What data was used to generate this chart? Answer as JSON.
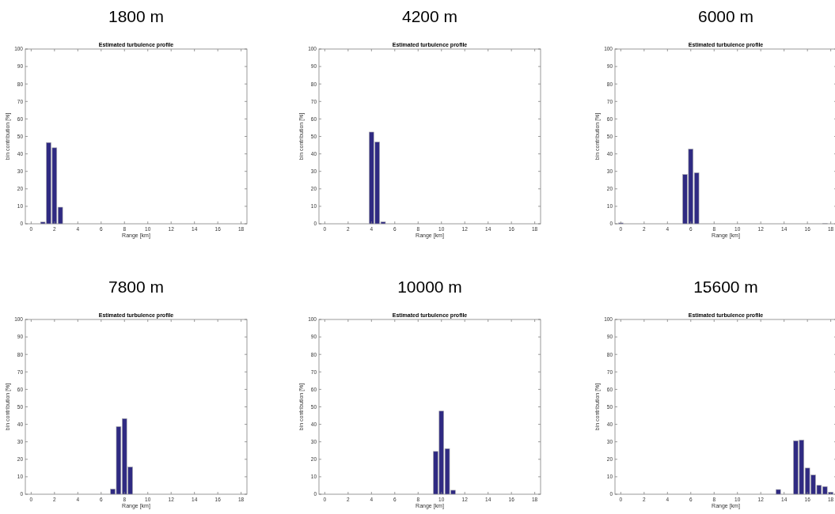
{
  "chart_data": [
    {
      "type": "bar",
      "title": "1800 m",
      "subtitle": "Estimated turbulence profile",
      "xlabel": "Range [km]",
      "ylabel": "bin contribution [%]",
      "x": [
        1,
        1.5,
        2,
        2.5
      ],
      "values": [
        1,
        46.5,
        43.5,
        9.5
      ],
      "color": "#2f2a82",
      "xlim": [
        -0.5,
        18.5
      ],
      "xticks": [
        0,
        2,
        4,
        6,
        8,
        10,
        12,
        14,
        16,
        18
      ],
      "ylim": [
        0,
        100
      ],
      "yticks": [
        0,
        10,
        20,
        30,
        40,
        50,
        60,
        70,
        80,
        90,
        100
      ],
      "grid": false
    },
    {
      "type": "bar",
      "title": "4200 m",
      "subtitle": "Estimated turbulence profile",
      "xlabel": "Range [km]",
      "ylabel": "bin contribution [%]",
      "x": [
        4,
        4.5,
        5
      ],
      "values": [
        52.5,
        46.8,
        1.1
      ],
      "color": "#2f2a82",
      "xlim": [
        -0.5,
        18.5
      ],
      "xticks": [
        0,
        2,
        4,
        6,
        8,
        10,
        12,
        14,
        16,
        18
      ],
      "ylim": [
        0,
        100
      ],
      "yticks": [
        0,
        10,
        20,
        30,
        40,
        50,
        60,
        70,
        80,
        90,
        100
      ],
      "grid": false
    },
    {
      "type": "bar",
      "title": "6000 m",
      "subtitle": "Estimated turbulence profile",
      "xlabel": "Range [km]",
      "ylabel": "bin contribution [%]",
      "x": [
        0,
        5.5,
        6,
        6.5,
        17.5
      ],
      "values": [
        0.5,
        28.2,
        42.8,
        29.2,
        0.3
      ],
      "color": "#2f2a82",
      "xlim": [
        -0.5,
        18.5
      ],
      "xticks": [
        0,
        2,
        4,
        6,
        8,
        10,
        12,
        14,
        16,
        18
      ],
      "ylim": [
        0,
        100
      ],
      "yticks": [
        0,
        10,
        20,
        30,
        40,
        50,
        60,
        70,
        80,
        90,
        100
      ],
      "grid": false
    },
    {
      "type": "bar",
      "title": "7800 m",
      "subtitle": "Estimated turbulence profile",
      "xlabel": "Range [km]",
      "ylabel": "bin contribution [%]",
      "x": [
        7,
        7.5,
        8,
        8.5
      ],
      "values": [
        3,
        38.7,
        43.3,
        15.6
      ],
      "color": "#2f2a82",
      "xlim": [
        -0.5,
        18.5
      ],
      "xticks": [
        0,
        2,
        4,
        6,
        8,
        10,
        12,
        14,
        16,
        18
      ],
      "ylim": [
        0,
        100
      ],
      "yticks": [
        0,
        10,
        20,
        30,
        40,
        50,
        60,
        70,
        80,
        90,
        100
      ],
      "grid": false
    },
    {
      "type": "bar",
      "title": "10000 m",
      "subtitle": "Estimated turbulence profile",
      "xlabel": "Range [km]",
      "ylabel": "bin contribution [%]",
      "x": [
        9.5,
        10,
        10.5,
        11
      ],
      "values": [
        24.5,
        47.6,
        26.1,
        2.3
      ],
      "color": "#2f2a82",
      "xlim": [
        -0.5,
        18.5
      ],
      "xticks": [
        0,
        2,
        4,
        6,
        8,
        10,
        12,
        14,
        16,
        18
      ],
      "ylim": [
        0,
        100
      ],
      "yticks": [
        0,
        10,
        20,
        30,
        40,
        50,
        60,
        70,
        80,
        90,
        100
      ],
      "grid": false
    },
    {
      "type": "bar",
      "title": "15600 m",
      "subtitle": "Estimated turbulence profile",
      "xlabel": "Range [km]",
      "ylabel": "bin contribution [%]",
      "x": [
        13.5,
        15,
        15.5,
        16,
        16.5,
        17,
        17.5,
        18
      ],
      "values": [
        2.7,
        30.6,
        31,
        15,
        11,
        5.1,
        4.4,
        1.2
      ],
      "color": "#2f2a82",
      "xlim": [
        -0.5,
        18.5
      ],
      "xticks": [
        0,
        2,
        4,
        6,
        8,
        10,
        12,
        14,
        16,
        18
      ],
      "ylim": [
        0,
        100
      ],
      "yticks": [
        0,
        10,
        20,
        30,
        40,
        50,
        60,
        70,
        80,
        90,
        100
      ],
      "grid": false
    }
  ]
}
